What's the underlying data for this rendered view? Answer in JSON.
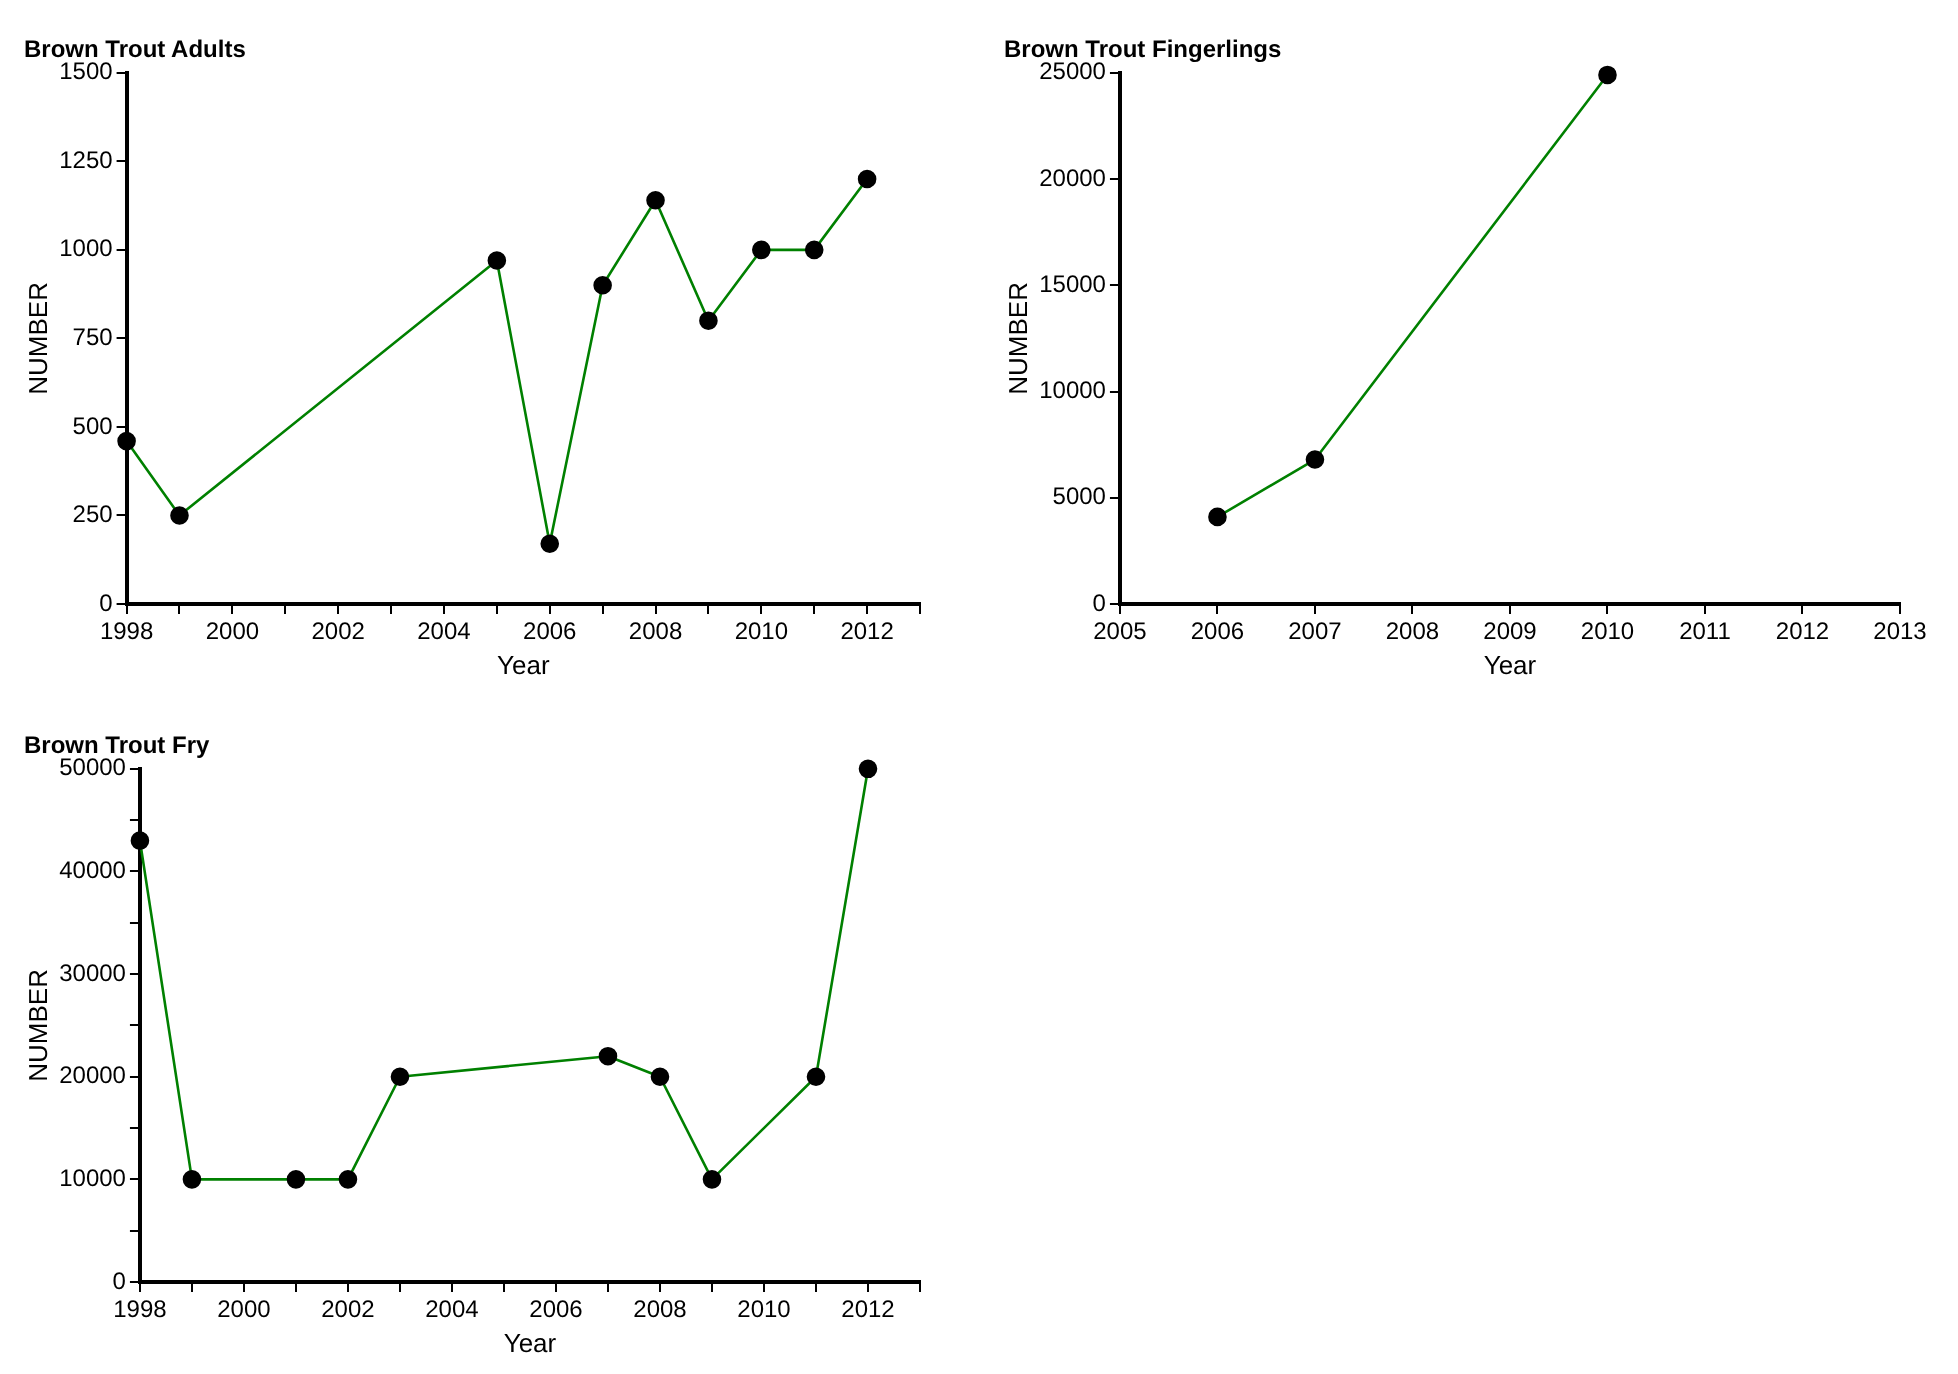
{
  "chart_data": [
    {
      "type": "line",
      "title": "Brown Trout Adults",
      "xlabel": "Year",
      "ylabel": "NUMBER",
      "x": [
        1998,
        1999,
        2005,
        2006,
        2007,
        2008,
        2009,
        2010,
        2011,
        2012
      ],
      "series": [
        {
          "color": "#008000",
          "values": [
            460,
            250,
            970,
            170,
            900,
            1140,
            800,
            1000,
            1000,
            1200
          ]
        }
      ],
      "xlim": [
        1998,
        2013
      ],
      "xticks": [
        1998,
        {
          "value": 1999,
          "label": null
        },
        2000,
        {
          "value": 2001,
          "label": null
        },
        2002,
        {
          "value": 2003,
          "label": null
        },
        2004,
        {
          "value": 2005,
          "label": null
        },
        2006,
        {
          "value": 2007,
          "label": null
        },
        2008,
        {
          "value": 2009,
          "label": null
        },
        2010,
        {
          "value": 2011,
          "label": null
        },
        2012,
        {
          "value": 2013,
          "label": null
        }
      ],
      "ylim": [
        0,
        1500
      ],
      "yticks": [
        0,
        250,
        500,
        750,
        1000,
        1250,
        1500
      ],
      "grid": false,
      "legend": false,
      "marker": "circle",
      "line_style": "solid"
    },
    {
      "type": "line",
      "title": "Brown Trout Fingerlings",
      "xlabel": "Year",
      "ylabel": "NUMBER",
      "x": [
        2006,
        2007,
        2010
      ],
      "series": [
        {
          "color": "#008000",
          "values": [
            4100,
            6800,
            24900
          ]
        }
      ],
      "xlim": [
        2005,
        2013
      ],
      "xticks": [
        2005,
        2006,
        2007,
        2008,
        2009,
        2010,
        2011,
        2012,
        2013
      ],
      "ylim": [
        0,
        25000
      ],
      "yticks": [
        0,
        5000,
        10000,
        15000,
        20000,
        25000
      ],
      "grid": false,
      "legend": false,
      "marker": "circle",
      "line_style": "solid"
    },
    {
      "type": "line",
      "title": "Brown Trout Fry",
      "xlabel": "Year",
      "ylabel": "NUMBER",
      "x": [
        1998,
        1999,
        2001,
        2002,
        2003,
        2007,
        2008,
        2009,
        2011,
        2012
      ],
      "series": [
        {
          "color": "#008000",
          "values": [
            43000,
            10000,
            10000,
            10000,
            20000,
            22000,
            20000,
            10000,
            20000,
            50000
          ]
        }
      ],
      "xlim": [
        1998,
        2013
      ],
      "xticks": [
        1998,
        {
          "value": 1999,
          "label": null
        },
        2000,
        {
          "value": 2001,
          "label": null
        },
        2002,
        {
          "value": 2003,
          "label": null
        },
        2004,
        {
          "value": 2005,
          "label": null
        },
        2006,
        {
          "value": 2007,
          "label": null
        },
        2008,
        {
          "value": 2009,
          "label": null
        },
        2010,
        {
          "value": 2011,
          "label": null
        },
        2012,
        {
          "value": 2013,
          "label": null
        }
      ],
      "ylim": [
        0,
        50000
      ],
      "yticks": [
        0,
        {
          "value": 5000,
          "label": null
        },
        10000,
        {
          "value": 15000,
          "label": null
        },
        20000,
        {
          "value": 25000,
          "label": null
        },
        30000,
        {
          "value": 35000,
          "label": null
        },
        40000,
        {
          "value": 45000,
          "label": null
        },
        50000
      ],
      "grid": false,
      "legend": false,
      "marker": "circle",
      "line_style": "solid"
    }
  ]
}
